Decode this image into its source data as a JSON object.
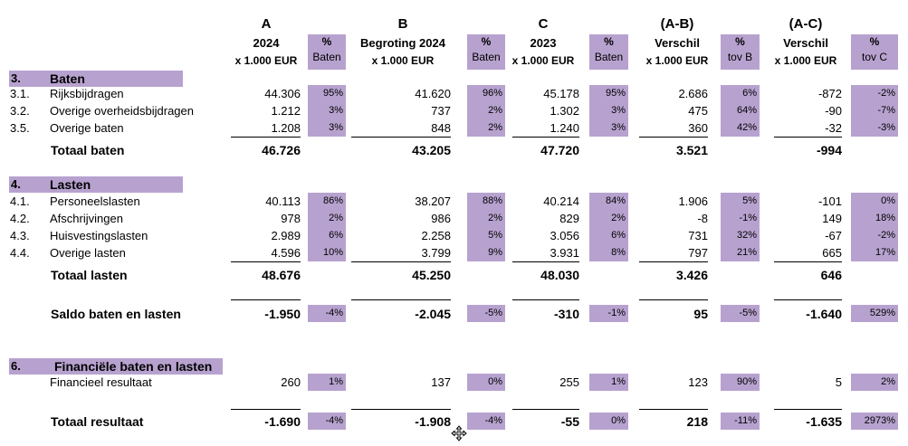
{
  "header": {
    "columns": [
      {
        "key": "A",
        "label": "A",
        "sub1": "2024",
        "sub2": "x 1.000 EUR",
        "pct_top": "%",
        "pct_bottom": "Baten"
      },
      {
        "key": "B",
        "label": "B",
        "sub1": "Begroting 2024",
        "sub2": "x 1.000 EUR",
        "pct_top": "%",
        "pct_bottom": "Baten"
      },
      {
        "key": "C",
        "label": "C",
        "sub1": "2023",
        "sub2": "x 1.000 EUR",
        "pct_top": "%",
        "pct_bottom": "Baten"
      },
      {
        "key": "AB",
        "label": "(A-B)",
        "sub1": "Verschil",
        "sub2": "x 1.000 EUR",
        "pct_top": "%",
        "pct_bottom": "tov B"
      },
      {
        "key": "AC",
        "label": "(A-C)",
        "sub1": "Verschil",
        "sub2": "x 1.000 EUR",
        "pct_top": "%",
        "pct_bottom": "tov C"
      }
    ]
  },
  "sections": {
    "baten": {
      "num": "3.",
      "title": "Baten"
    },
    "lasten": {
      "num": "4.",
      "title": "Lasten"
    },
    "financieel": {
      "num": "6.",
      "title": "Financiële baten en lasten"
    }
  },
  "rows": [
    {
      "id": "r31",
      "code": "3.1.",
      "label": "Rijksbijdragen",
      "vals": [
        "44.306",
        "95%",
        "41.620",
        "96%",
        "45.178",
        "95%",
        "2.686",
        "6%",
        "-872",
        "-2%"
      ]
    },
    {
      "id": "r32",
      "code": "3.2.",
      "label": "Overige overheidsbijdragen",
      "vals": [
        "1.212",
        "3%",
        "737",
        "2%",
        "1.302",
        "3%",
        "475",
        "64%",
        "-90",
        "-7%"
      ]
    },
    {
      "id": "r35",
      "code": "3.5.",
      "label": "Overige baten",
      "vals": [
        "1.208",
        "3%",
        "848",
        "2%",
        "1.240",
        "3%",
        "360",
        "42%",
        "-32",
        "-3%"
      ]
    },
    {
      "id": "totbaten",
      "code": "",
      "label": "Totaal baten",
      "vals": [
        "46.726",
        "",
        "43.205",
        "",
        "47.720",
        "",
        "3.521",
        "",
        "-994",
        ""
      ]
    },
    {
      "id": "r41",
      "code": "4.1.",
      "label": "Personeelslasten",
      "vals": [
        "40.113",
        "86%",
        "38.207",
        "88%",
        "40.214",
        "84%",
        "1.906",
        "5%",
        "-101",
        "0%"
      ]
    },
    {
      "id": "r42",
      "code": "4.2.",
      "label": "Afschrijvingen",
      "vals": [
        "978",
        "2%",
        "986",
        "2%",
        "829",
        "2%",
        "-8",
        "-1%",
        "149",
        "18%"
      ]
    },
    {
      "id": "r43",
      "code": "4.3.",
      "label": "Huisvestingslasten",
      "vals": [
        "2.989",
        "6%",
        "2.258",
        "5%",
        "3.056",
        "6%",
        "731",
        "32%",
        "-67",
        "-2%"
      ]
    },
    {
      "id": "r44",
      "code": "4.4.",
      "label": "Overige lasten",
      "vals": [
        "4.596",
        "10%",
        "3.799",
        "9%",
        "3.931",
        "8%",
        "797",
        "21%",
        "665",
        "17%"
      ]
    },
    {
      "id": "totlasten",
      "code": "",
      "label": "Totaal lasten",
      "vals": [
        "48.676",
        "",
        "45.250",
        "",
        "48.030",
        "",
        "3.426",
        "",
        "646",
        ""
      ]
    },
    {
      "id": "saldo",
      "code": "",
      "label": "Saldo baten en lasten",
      "vals": [
        "-1.950",
        "-4%",
        "-2.045",
        "-5%",
        "-310",
        "-1%",
        "95",
        "-5%",
        "-1.640",
        "529%"
      ]
    },
    {
      "id": "fin",
      "code": "",
      "label": "Financieel resultaat",
      "vals": [
        "260",
        "1%",
        "137",
        "0%",
        "255",
        "1%",
        "123",
        "90%",
        "5",
        "2%"
      ]
    },
    {
      "id": "totres",
      "code": "",
      "label": "Totaal resultaat",
      "vals": [
        "-1.690",
        "-4%",
        "-1.908",
        "-4%",
        "-55",
        "0%",
        "218",
        "-11%",
        "-1.635",
        "2973%"
      ]
    }
  ]
}
